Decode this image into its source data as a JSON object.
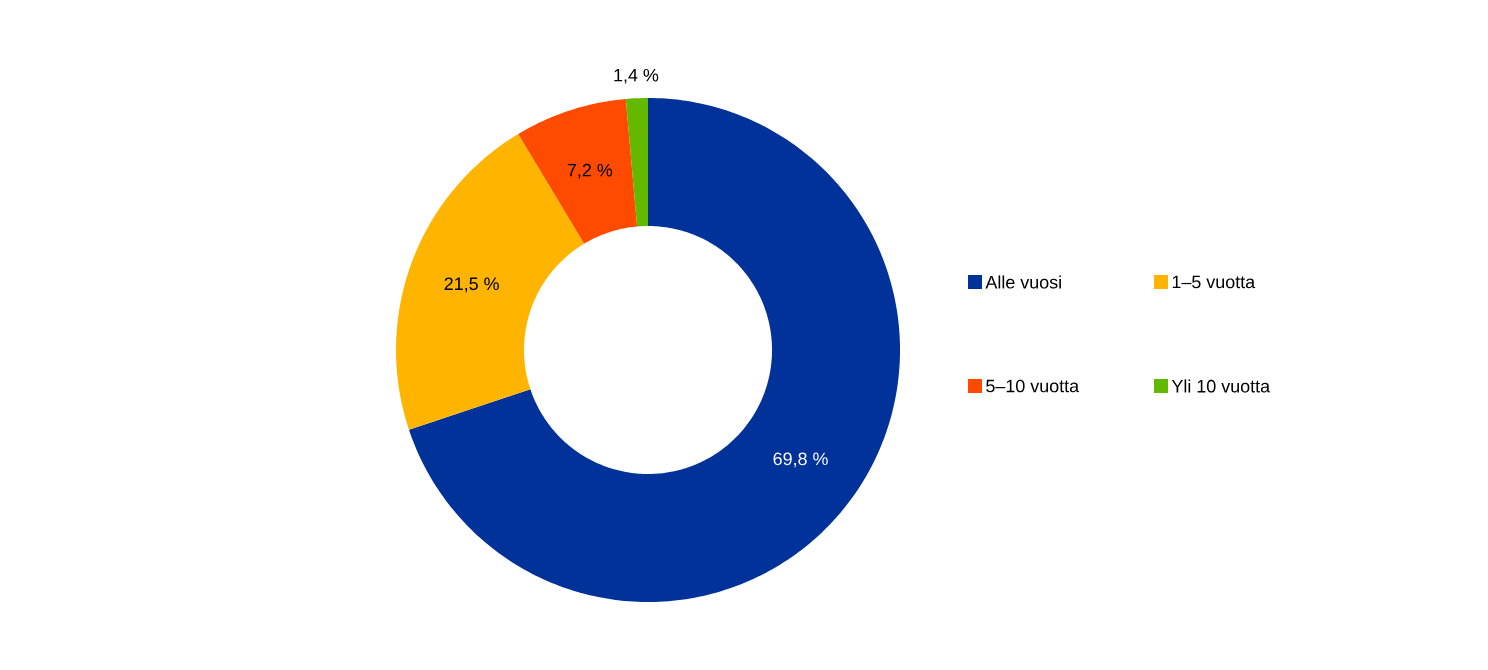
{
  "chart_data": {
    "type": "donut",
    "categories": [
      "Alle vuosi",
      "1–5 vuotta",
      "5–10 vuotta",
      "Yli 10 vuotta"
    ],
    "values": [
      69.8,
      21.5,
      7.2,
      1.4
    ],
    "colors": [
      "#003299",
      "#ffb400",
      "#ff4b00",
      "#65b800"
    ],
    "value_labels": [
      "69,8 %",
      "21,5 %",
      "7,2 %",
      "1,4 %"
    ],
    "legend": "right"
  }
}
